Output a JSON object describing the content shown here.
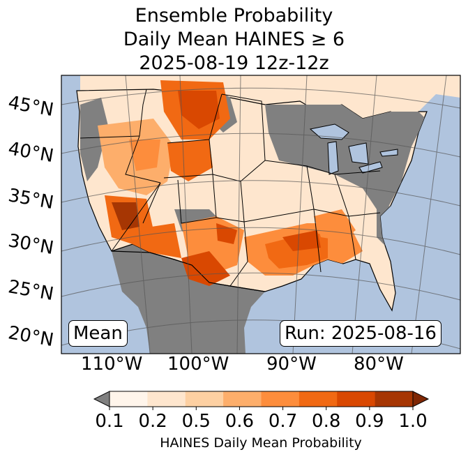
{
  "title": {
    "line1": "Ensemble Probability",
    "line2": "Daily Mean HAINES ≥ 6",
    "line3": "2025-08-19 12z-12z"
  },
  "map": {
    "region": "CONUS",
    "lat_labels": [
      "45°N",
      "40°N",
      "35°N",
      "30°N",
      "25°N",
      "20°N"
    ],
    "lon_labels": [
      "110°W",
      "100°W",
      "90°W",
      "80°W"
    ],
    "mean_box": "Mean",
    "run_box": "Run: 2025-08-16",
    "colors": {
      "ocean": "#b0c4de",
      "land_below": "#ffffff",
      "no_data": "#808080",
      "borders": "#000000",
      "graticule": "#555555"
    }
  },
  "colorbar": {
    "ticks": [
      "0.1",
      "0.2",
      "0.5",
      "0.6",
      "0.7",
      "0.8",
      "0.9",
      "1.0"
    ],
    "label": "HAINES Daily Mean Probability",
    "colors": [
      "#fff5eb",
      "#fee6ce",
      "#fdd0a2",
      "#fdae6b",
      "#fd8d3c",
      "#f16913",
      "#d94801",
      "#a63603"
    ],
    "under_color": "#808080",
    "over_color": "#7f2704",
    "extend": "both"
  }
}
